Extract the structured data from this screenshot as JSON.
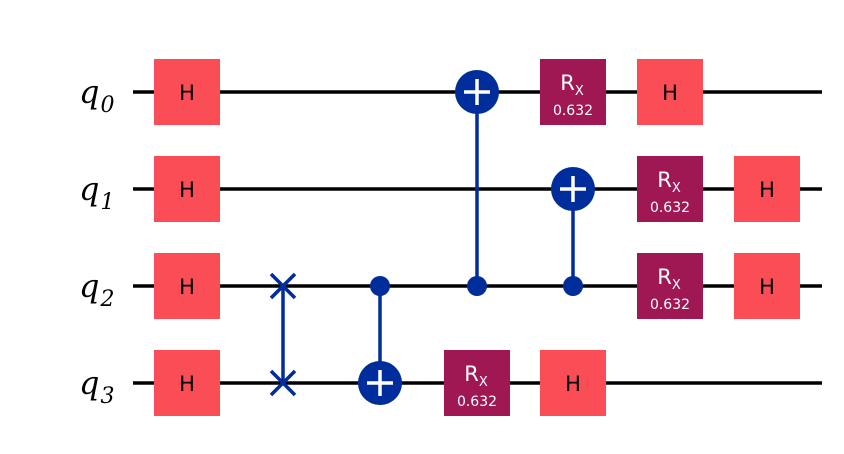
{
  "circuit": {
    "colors": {
      "wire": "#000000",
      "h_gate": "#FA4D56",
      "rx_gate": "#9F1853",
      "control": "#002D9C",
      "background": "#FFFFFF"
    },
    "qubits": [
      {
        "name": "q",
        "index": "0"
      },
      {
        "name": "q",
        "index": "1"
      },
      {
        "name": "q",
        "index": "2"
      },
      {
        "name": "q",
        "index": "3"
      }
    ],
    "gates": [
      {
        "type": "h",
        "label": "H",
        "qubit": 0,
        "column": 0
      },
      {
        "type": "h",
        "label": "H",
        "qubit": 1,
        "column": 0
      },
      {
        "type": "h",
        "label": "H",
        "qubit": 2,
        "column": 0
      },
      {
        "type": "h",
        "label": "H",
        "qubit": 3,
        "column": 0
      },
      {
        "type": "swap",
        "qubits": [
          2,
          3
        ],
        "column": 1
      },
      {
        "type": "cx",
        "control": 2,
        "target": 3,
        "column": 2
      },
      {
        "type": "cx",
        "control": 2,
        "target": 0,
        "column": 3
      },
      {
        "type": "rx",
        "label": "R",
        "subscript": "X",
        "param": "0.632",
        "qubit": 3,
        "column": 3
      },
      {
        "type": "cx",
        "control": 2,
        "target": 1,
        "column": 4
      },
      {
        "type": "rx",
        "label": "R",
        "subscript": "X",
        "param": "0.632",
        "qubit": 0,
        "column": 4
      },
      {
        "type": "h",
        "label": "H",
        "qubit": 3,
        "column": 4
      },
      {
        "type": "h",
        "label": "H",
        "qubit": 0,
        "column": 5
      },
      {
        "type": "rx",
        "label": "R",
        "subscript": "X",
        "param": "0.632",
        "qubit": 1,
        "column": 5
      },
      {
        "type": "rx",
        "label": "R",
        "subscript": "X",
        "param": "0.632",
        "qubit": 2,
        "column": 5
      },
      {
        "type": "h",
        "label": "H",
        "qubit": 1,
        "column": 6
      },
      {
        "type": "h",
        "label": "H",
        "qubit": 2,
        "column": 6
      }
    ]
  }
}
